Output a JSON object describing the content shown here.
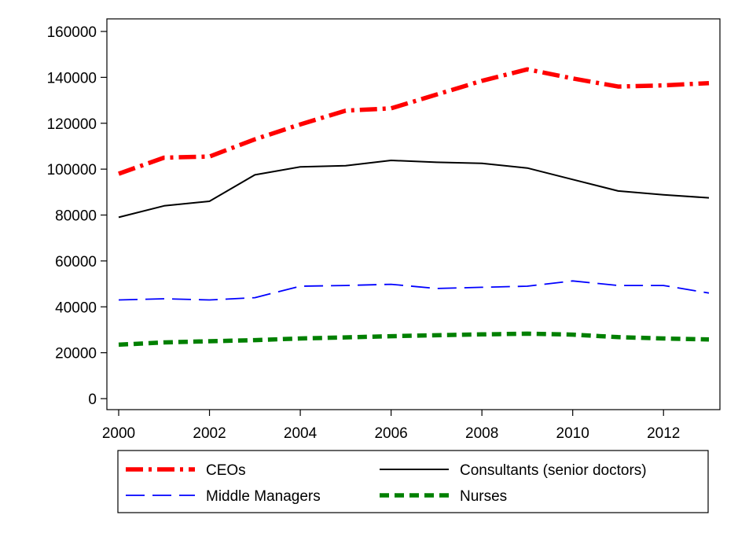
{
  "chart_data": {
    "type": "line",
    "title": "",
    "xlabel": "",
    "ylabel": "",
    "xlim": [
      2000,
      2013
    ],
    "ylim": [
      0,
      160000
    ],
    "x": [
      2000,
      2001,
      2002,
      2003,
      2004,
      2005,
      2006,
      2007,
      2008,
      2009,
      2010,
      2011,
      2012,
      2013
    ],
    "xticks": [
      2000,
      2002,
      2004,
      2006,
      2008,
      2010,
      2012
    ],
    "xtick_labels": [
      "2000",
      "2002",
      "2004",
      "2006",
      "2008",
      "2010",
      "2012"
    ],
    "yticks": [
      0,
      20000,
      40000,
      60000,
      80000,
      100000,
      120000,
      140000,
      160000
    ],
    "ytick_labels": [
      "0",
      "20000",
      "40000",
      "60000",
      "80000",
      "100000",
      "120000",
      "140000",
      "160000"
    ],
    "grid": false,
    "legend_position": "bottom",
    "series": [
      {
        "name": "CEOs",
        "color": "#ff0000",
        "style": "dash-dot",
        "values": [
          98000,
          105000,
          105500,
          113000,
          119500,
          125500,
          126500,
          132500,
          138500,
          143500,
          139500,
          136000,
          136500,
          137500
        ]
      },
      {
        "name": "Consultants (senior doctors)",
        "color": "#000000",
        "style": "solid",
        "values": [
          79000,
          84000,
          86000,
          97500,
          101000,
          101500,
          103800,
          103000,
          102500,
          100500,
          95500,
          90500,
          88800,
          87500
        ]
      },
      {
        "name": "Middle Managers",
        "color": "#0000ff",
        "style": "long-dash",
        "values": [
          43000,
          43500,
          43000,
          44000,
          49000,
          49300,
          49800,
          48000,
          48500,
          49000,
          51300,
          49300,
          49300,
          46000
        ]
      },
      {
        "name": "Nurses",
        "color": "#008000",
        "style": "dash",
        "values": [
          23500,
          24500,
          25000,
          25500,
          26200,
          26700,
          27200,
          27600,
          28000,
          28300,
          27900,
          26800,
          26200,
          25800
        ]
      }
    ]
  }
}
